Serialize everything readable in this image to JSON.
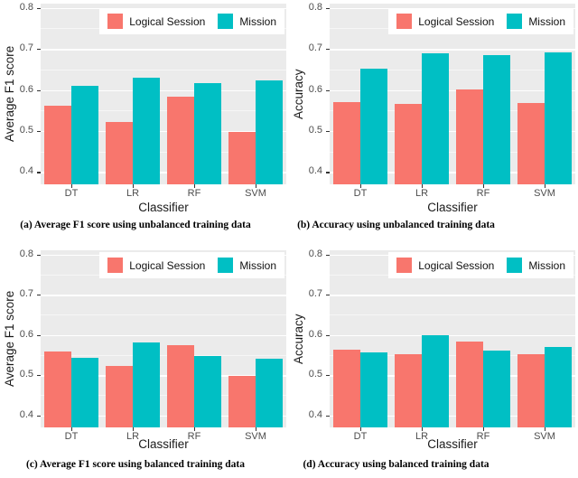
{
  "page": {
    "background": "#FFFFFF"
  },
  "colors": {
    "panel_bg": "#EBEBEB",
    "grid_major": "#FFFFFF",
    "grid_minor": "#F5F5F5",
    "logical_session": "#F8766D",
    "mission": "#00BFC4",
    "tick_label": "#4D4D4D",
    "axis_title": "#1A1A1A",
    "caption_text": "#000000",
    "legend_bg": "#FFFFFF"
  },
  "legend": {
    "items": [
      {
        "label": "Logical Session",
        "color": "#F8766D"
      },
      {
        "label": "Mission",
        "color": "#00BFC4"
      }
    ]
  },
  "chart_data": [
    {
      "id": "a",
      "type": "bar",
      "caption": "(a) Average F1 score using unbalanced training data",
      "xlabel": "Classifier",
      "ylabel": "Average F1 score",
      "categories": [
        "DT",
        "LR",
        "RF",
        "SVM"
      ],
      "series": [
        {
          "name": "Logical Session",
          "color": "#F8766D",
          "values": [
            0.561,
            0.522,
            0.584,
            0.498
          ]
        },
        {
          "name": "Mission",
          "color": "#00BFC4",
          "values": [
            0.611,
            0.63,
            0.616,
            0.623
          ]
        }
      ],
      "ylim": [
        0.37,
        0.81
      ],
      "yticks": [
        0.4,
        0.5,
        0.6,
        0.7,
        0.8
      ],
      "yticks_minor": [
        0.45,
        0.55,
        0.65,
        0.75
      ],
      "grid": true,
      "legend_position": "top-right"
    },
    {
      "id": "b",
      "type": "bar",
      "caption": "(b) Accuracy using unbalanced training data",
      "xlabel": "Classifier",
      "ylabel": "Accuracy",
      "categories": [
        "DT",
        "LR",
        "RF",
        "SVM"
      ],
      "series": [
        {
          "name": "Logical Session",
          "color": "#F8766D",
          "values": [
            0.571,
            0.565,
            0.601,
            0.569
          ]
        },
        {
          "name": "Mission",
          "color": "#00BFC4",
          "values": [
            0.651,
            0.69,
            0.684,
            0.692
          ]
        }
      ],
      "ylim": [
        0.37,
        0.81
      ],
      "yticks": [
        0.4,
        0.5,
        0.6,
        0.7,
        0.8
      ],
      "yticks_minor": [
        0.45,
        0.55,
        0.65,
        0.75
      ],
      "grid": true,
      "legend_position": "top-right"
    },
    {
      "id": "c",
      "type": "bar",
      "caption": "(c) Average F1 score using balanced training data",
      "xlabel": "Classifier",
      "ylabel": "Average F1 score",
      "categories": [
        "DT",
        "LR",
        "RF",
        "SVM"
      ],
      "series": [
        {
          "name": "Logical Session",
          "color": "#F8766D",
          "values": [
            0.558,
            0.522,
            0.574,
            0.499
          ]
        },
        {
          "name": "Mission",
          "color": "#00BFC4",
          "values": [
            0.543,
            0.582,
            0.547,
            0.541
          ]
        }
      ],
      "ylim": [
        0.37,
        0.81
      ],
      "yticks": [
        0.4,
        0.5,
        0.6,
        0.7,
        0.8
      ],
      "yticks_minor": [
        0.45,
        0.55,
        0.65,
        0.75
      ],
      "grid": true,
      "legend_position": "top-right"
    },
    {
      "id": "d",
      "type": "bar",
      "caption": "(d) Accuracy using balanced training data",
      "xlabel": "Classifier",
      "ylabel": "Accuracy",
      "categories": [
        "DT",
        "LR",
        "RF",
        "SVM"
      ],
      "series": [
        {
          "name": "Logical Session",
          "color": "#F8766D",
          "values": [
            0.564,
            0.552,
            0.583,
            0.552
          ]
        },
        {
          "name": "Mission",
          "color": "#00BFC4",
          "values": [
            0.556,
            0.6,
            0.56,
            0.57
          ]
        }
      ],
      "ylim": [
        0.37,
        0.81
      ],
      "yticks": [
        0.4,
        0.5,
        0.6,
        0.7,
        0.8
      ],
      "yticks_minor": [
        0.45,
        0.55,
        0.65,
        0.75
      ],
      "grid": true,
      "legend_position": "top-right"
    }
  ]
}
